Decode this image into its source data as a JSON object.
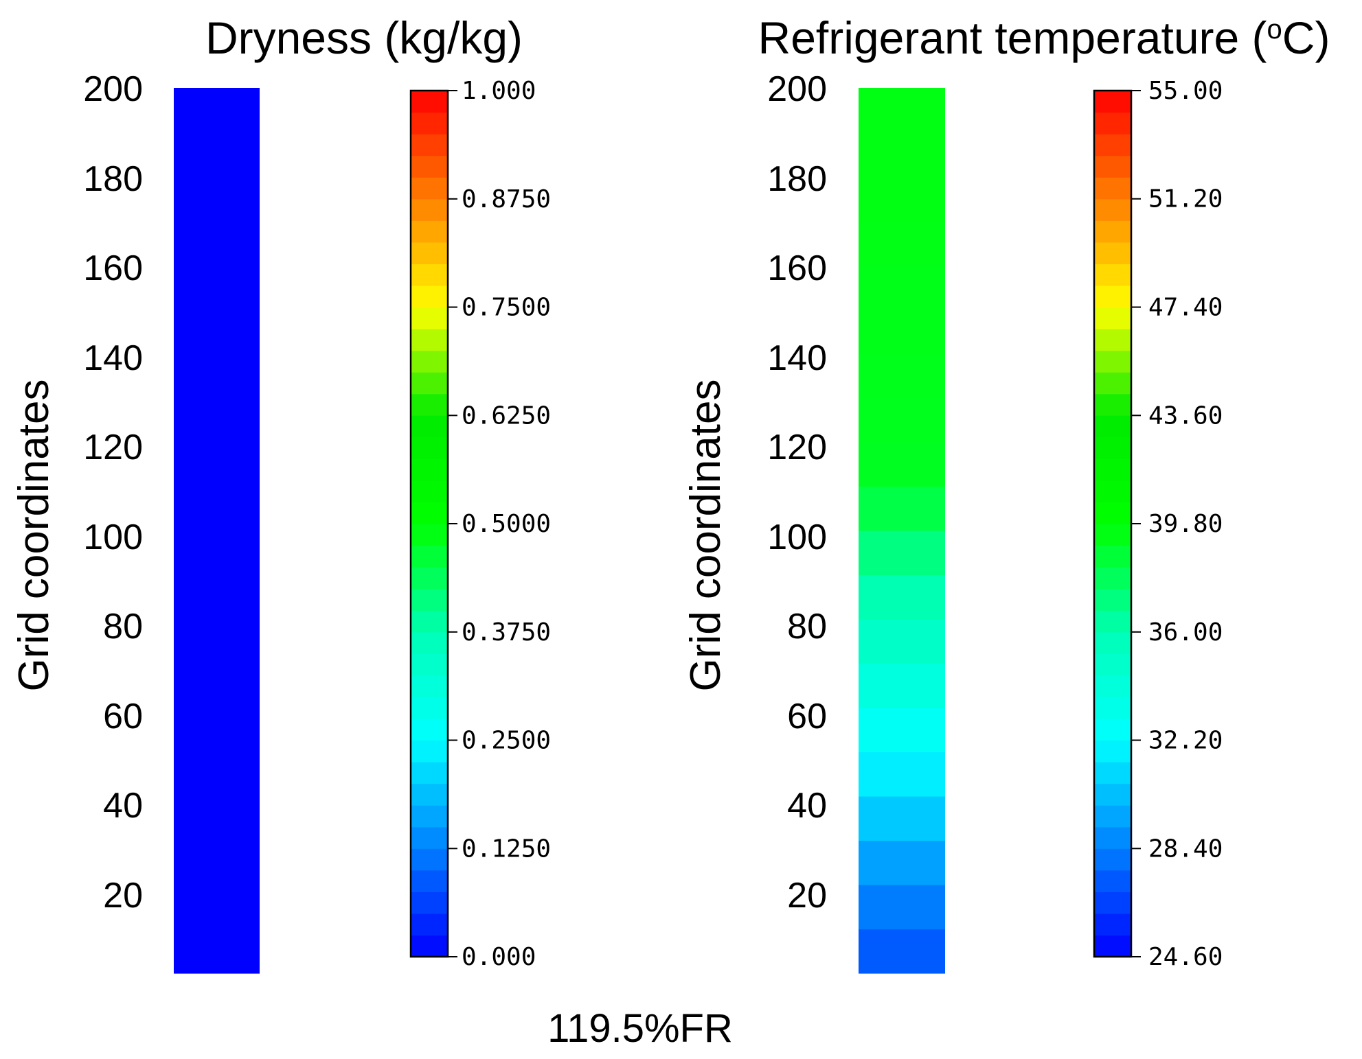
{
  "caption": "119.5%FR",
  "chart_data": [
    {
      "type": "heatmap",
      "title": "Dryness (kg/kg)",
      "ylabel": "Grid coordinates",
      "yticks": [
        "20",
        "40",
        "60",
        "80",
        "100",
        "120",
        "140",
        "160",
        "180",
        "200"
      ],
      "ylim": [
        0,
        200
      ],
      "colorbar": {
        "range": [
          0,
          1
        ],
        "tick_values": [
          0,
          0.125,
          0.25,
          0.375,
          0.5,
          0.625,
          0.75,
          0.875,
          1.0
        ],
        "tick_labels": [
          "0.000",
          "0.1250",
          "0.2500",
          "0.3750",
          "0.5000",
          "0.6250",
          "0.7500",
          "0.8750",
          "1.000"
        ],
        "bands": 40
      },
      "column": {
        "grid_y": [
          0,
          200
        ],
        "values": [
          0,
          0
        ]
      }
    },
    {
      "type": "heatmap",
      "title": "Refrigerant temperature (",
      "title_sup": "o",
      "title_end": "C)",
      "ylabel": "Grid coordinates",
      "yticks": [
        "20",
        "40",
        "60",
        "80",
        "100",
        "120",
        "140",
        "160",
        "180",
        "200"
      ],
      "ylim": [
        0,
        200
      ],
      "colorbar": {
        "range": [
          24.6,
          55.0
        ],
        "tick_values": [
          24.6,
          28.4,
          32.2,
          36.0,
          39.8,
          43.6,
          47.4,
          51.2,
          55.0
        ],
        "tick_labels": [
          "24.60",
          "28.40",
          "32.20",
          "36.00",
          "39.80",
          "43.60",
          "47.40",
          "51.20",
          "55.00"
        ],
        "bands": 40
      },
      "column": {
        "grid_y": [
          0,
          10,
          20,
          30,
          40,
          50,
          60,
          70,
          80,
          90,
          100,
          110,
          120,
          130,
          140,
          150,
          160,
          170,
          180,
          190,
          200
        ],
        "values": [
          26.8,
          27.8,
          28.8,
          30.0,
          31.2,
          32.2,
          33.2,
          34.5,
          35.5,
          36.6,
          37.6,
          39.0,
          39.2,
          39.2,
          39.3,
          39.3,
          39.3,
          39.4,
          39.4,
          39.4,
          39.4
        ]
      }
    }
  ]
}
